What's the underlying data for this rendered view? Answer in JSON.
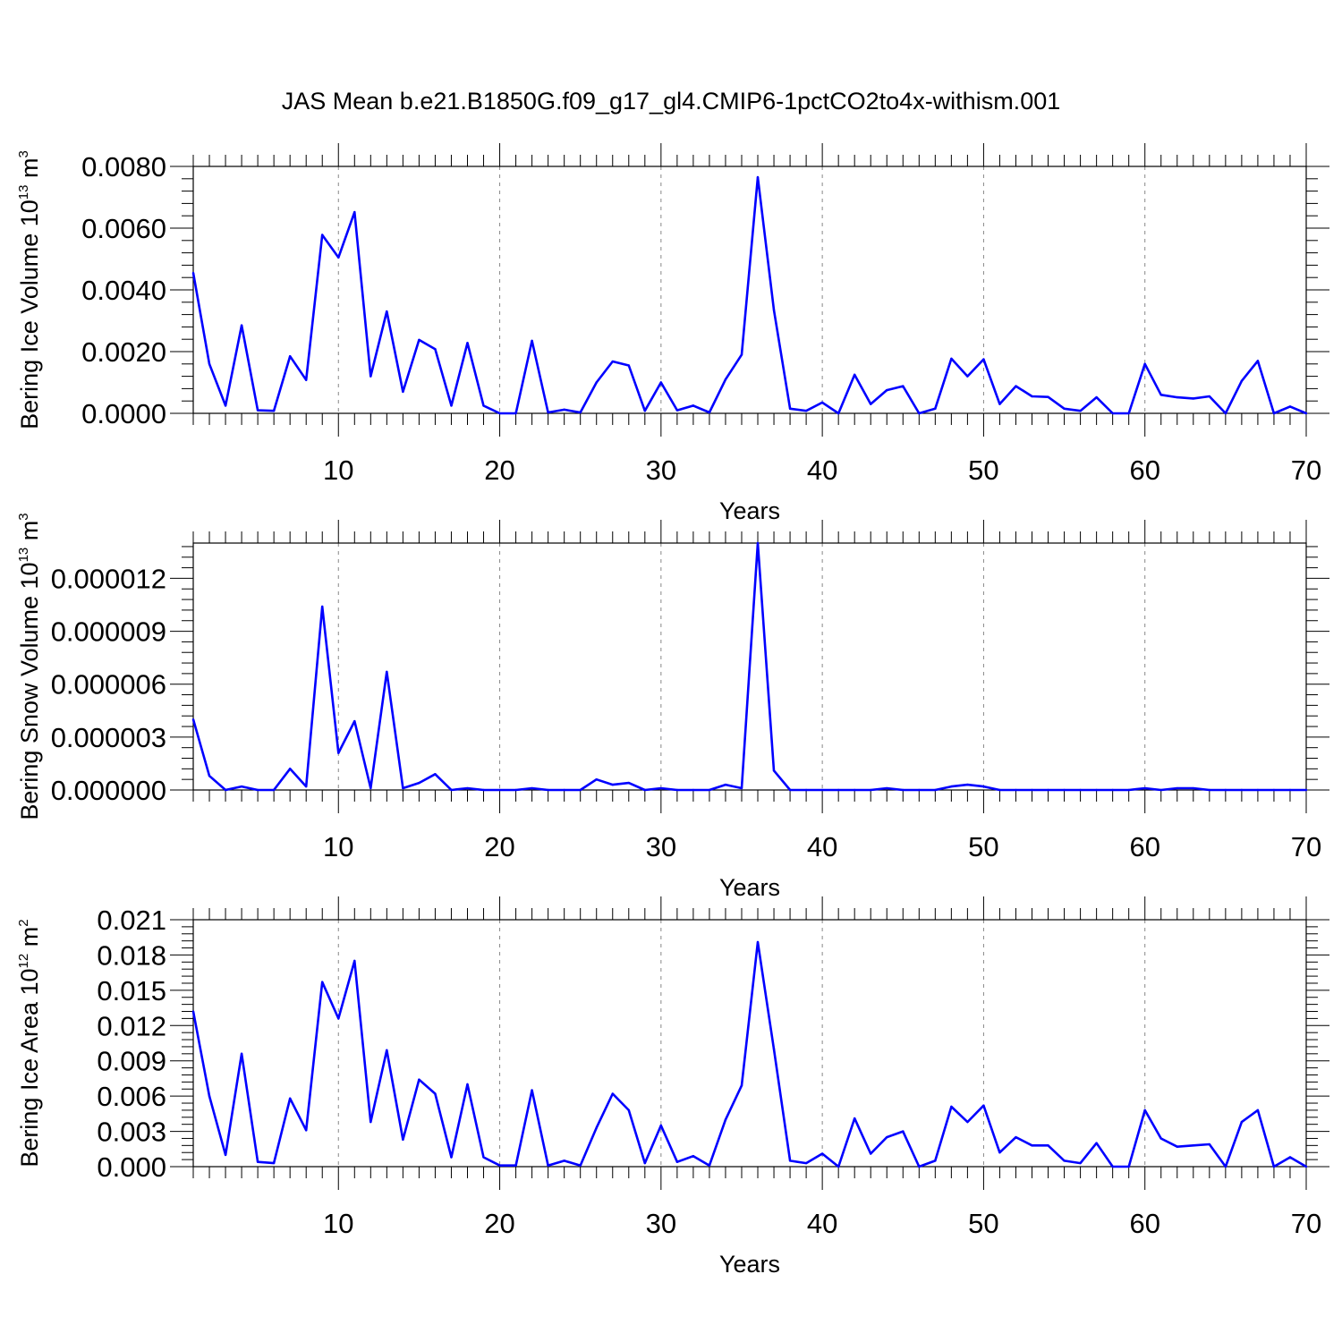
{
  "title": "JAS Mean b.e21.B1850G.f09_g17_gl4.CMIP6-1pctCO2to4x-withism.001",
  "colors": {
    "line": "#0000ff",
    "axis": "#000000",
    "grid": "#888888"
  },
  "chart_data": [
    {
      "type": "line",
      "xlabel": "Years",
      "ylabel": {
        "main": "Bering Ice Volume 10",
        "exp": "13",
        "unit": " m",
        "unit_exp": "3"
      },
      "xlim": [
        1,
        70
      ],
      "ylim": [
        0,
        0.008
      ],
      "xticks": [
        10,
        20,
        30,
        40,
        50,
        60,
        70
      ],
      "yticks": [
        "0.0000",
        "0.0020",
        "0.0040",
        "0.0060",
        "0.0080"
      ],
      "ytick_values": [
        0,
        0.002,
        0.004,
        0.006,
        0.008
      ],
      "grid": "vertical dashed",
      "series": [
        {
          "x": [
            1,
            2,
            3,
            4,
            5,
            6,
            7,
            8,
            9,
            10,
            11,
            12,
            13,
            14,
            15,
            16,
            17,
            18,
            19,
            20,
            21,
            22,
            23,
            24,
            25,
            26,
            27,
            28,
            29,
            30,
            31,
            32,
            33,
            34,
            35,
            36,
            37,
            38,
            39,
            40,
            41,
            42,
            43,
            44,
            45,
            46,
            47,
            48,
            49,
            50,
            51,
            52,
            53,
            54,
            55,
            56,
            57,
            58,
            59,
            60,
            61,
            62,
            63,
            64,
            65,
            66,
            67,
            68,
            69,
            70
          ],
          "y": [
            0.00455,
            0.0016,
            0.00025,
            0.00285,
            0.0001,
            8e-05,
            0.00185,
            0.00108,
            0.00578,
            0.00505,
            0.00652,
            0.0012,
            0.0033,
            0.0007,
            0.00238,
            0.00208,
            0.00025,
            0.00228,
            0.00025,
            0.0,
            0.0,
            0.00235,
            3e-05,
            0.00012,
            3e-05,
            0.001,
            0.00168,
            0.00155,
            8e-05,
            0.001,
            0.0001,
            0.00025,
            3e-05,
            0.0011,
            0.0019,
            0.00765,
            0.00335,
            0.00015,
            8e-05,
            0.00035,
            0.0,
            0.00125,
            0.0003,
            0.00075,
            0.00088,
            0.0,
            0.00015,
            0.00177,
            0.0012,
            0.00175,
            0.0003,
            0.00088,
            0.00055,
            0.00053,
            0.00015,
            8e-05,
            0.00052,
            0.0,
            0.0,
            0.0016,
            0.0006,
            0.00052,
            0.00048,
            0.00055,
            0.0,
            0.00105,
            0.0017,
            0.0,
            0.00022,
            0.0
          ]
        }
      ]
    },
    {
      "type": "line",
      "xlabel": "Years",
      "ylabel": {
        "main": "Bering Snow Volume 10",
        "exp": "13",
        "unit": " m",
        "unit_exp": "3"
      },
      "xlim": [
        1,
        70
      ],
      "ylim": [
        0,
        1.4e-05
      ],
      "xticks": [
        10,
        20,
        30,
        40,
        50,
        60,
        70
      ],
      "yticks": [
        "0.000000",
        "0.000003",
        "0.000006",
        "0.000009",
        "0.000012"
      ],
      "ytick_values": [
        0,
        3e-06,
        6e-06,
        9e-06,
        1.2e-05
      ],
      "grid": "vertical dashed",
      "series": [
        {
          "x": [
            1,
            2,
            3,
            4,
            5,
            6,
            7,
            8,
            9,
            10,
            11,
            12,
            13,
            14,
            15,
            16,
            17,
            18,
            19,
            20,
            21,
            22,
            23,
            24,
            25,
            26,
            27,
            28,
            29,
            30,
            31,
            32,
            33,
            34,
            35,
            36,
            37,
            38,
            39,
            40,
            41,
            42,
            43,
            44,
            45,
            46,
            47,
            48,
            49,
            50,
            51,
            52,
            53,
            54,
            55,
            56,
            57,
            58,
            59,
            60,
            61,
            62,
            63,
            64,
            65,
            66,
            67,
            68,
            69,
            70
          ],
          "y": [
            4e-06,
            8e-07,
            0.0,
            2e-07,
            0.0,
            0.0,
            1.2e-06,
            2e-07,
            1.04e-05,
            2.1e-06,
            3.9e-06,
            1e-07,
            6.7e-06,
            1e-07,
            4e-07,
            9e-07,
            0.0,
            1e-07,
            0.0,
            0.0,
            0.0,
            1e-07,
            0.0,
            0.0,
            0.0,
            6e-07,
            3e-07,
            4e-07,
            0.0,
            1e-07,
            0.0,
            0.0,
            0.0,
            3e-07,
            1e-07,
            1.4e-05,
            1.1e-06,
            0.0,
            0.0,
            0.0,
            0.0,
            0.0,
            0.0,
            1e-07,
            0.0,
            0.0,
            0.0,
            2e-07,
            3e-07,
            2e-07,
            0.0,
            0.0,
            0.0,
            0.0,
            0.0,
            0.0,
            0.0,
            0.0,
            0.0,
            1e-07,
            0.0,
            1e-07,
            1e-07,
            0.0,
            0.0,
            0.0,
            0.0,
            0.0,
            0.0,
            0.0
          ]
        }
      ]
    },
    {
      "type": "line",
      "xlabel": "Years",
      "ylabel": {
        "main": "Bering Ice Area 10",
        "exp": "12",
        "unit": " m",
        "unit_exp": "2"
      },
      "xlim": [
        1,
        70
      ],
      "ylim": [
        0,
        0.021
      ],
      "xticks": [
        10,
        20,
        30,
        40,
        50,
        60,
        70
      ],
      "yticks": [
        "0.000",
        "0.003",
        "0.006",
        "0.009",
        "0.012",
        "0.015",
        "0.018",
        "0.021"
      ],
      "ytick_values": [
        0,
        0.003,
        0.006,
        0.009,
        0.012,
        0.015,
        0.018,
        0.021
      ],
      "grid": "vertical dashed",
      "series": [
        {
          "x": [
            1,
            2,
            3,
            4,
            5,
            6,
            7,
            8,
            9,
            10,
            11,
            12,
            13,
            14,
            15,
            16,
            17,
            18,
            19,
            20,
            21,
            22,
            23,
            24,
            25,
            26,
            27,
            28,
            29,
            30,
            31,
            32,
            33,
            34,
            35,
            36,
            37,
            38,
            39,
            40,
            41,
            42,
            43,
            44,
            45,
            46,
            47,
            48,
            49,
            50,
            51,
            52,
            53,
            54,
            55,
            56,
            57,
            58,
            59,
            60,
            61,
            62,
            63,
            64,
            65,
            66,
            67,
            68,
            69,
            70
          ],
          "y": [
            0.0132,
            0.006,
            0.001,
            0.0096,
            0.0004,
            0.0003,
            0.0058,
            0.0031,
            0.0157,
            0.0126,
            0.0175,
            0.0038,
            0.0099,
            0.0023,
            0.0074,
            0.0062,
            0.0008,
            0.007,
            0.0008,
            0.0001,
            0.0001,
            0.0065,
            0.0001,
            0.0005,
            0.0001,
            0.0033,
            0.0062,
            0.0048,
            0.0003,
            0.0035,
            0.0004,
            0.0009,
            0.0001,
            0.004,
            0.0069,
            0.0191,
            0.01,
            0.0005,
            0.0003,
            0.0011,
            0.0,
            0.0041,
            0.0011,
            0.0025,
            0.003,
            0.0,
            0.0005,
            0.0051,
            0.0038,
            0.0052,
            0.0012,
            0.0025,
            0.0018,
            0.0018,
            0.0005,
            0.0003,
            0.002,
            0.0,
            0.0,
            0.0048,
            0.0024,
            0.0017,
            0.0018,
            0.0019,
            0.0,
            0.0038,
            0.0048,
            0.0,
            0.0008,
            0.0
          ]
        }
      ]
    }
  ]
}
